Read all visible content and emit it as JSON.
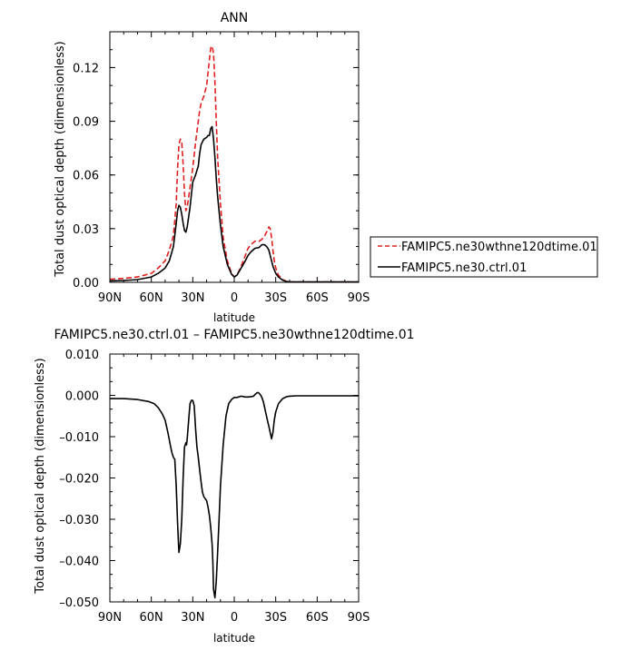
{
  "chart_data": [
    {
      "type": "line",
      "title": "ANN",
      "xlabel": "latitude",
      "ylabel": "Total dust optical depth (dimensionless)",
      "xlim": [
        90,
        -90
      ],
      "ylim": [
        0,
        0.14
      ],
      "x_ticks": [
        90,
        60,
        30,
        0,
        -30,
        -60,
        -90
      ],
      "x_tick_labels": [
        "90N",
        "60N",
        "30N",
        "0",
        "30S",
        "60S",
        "90S"
      ],
      "y_ticks": [
        0,
        0.03,
        0.06,
        0.09,
        0.12
      ],
      "y_tick_labels": [
        "0.00",
        "0.03",
        "0.06",
        "0.09",
        "0.12"
      ],
      "legend_position": "right",
      "series": [
        {
          "name": "FAMIPC5.ne30wthne120dtime.01",
          "color": "#e02020",
          "dash": "dashed",
          "x": [
            90,
            80,
            70,
            60,
            55,
            50,
            47,
            44,
            42,
            41,
            40,
            39,
            38,
            37,
            36,
            35,
            34,
            32,
            30,
            28,
            26,
            25,
            24,
            22,
            20,
            19,
            18,
            17,
            16,
            15,
            14,
            13,
            12,
            10,
            8,
            5,
            2,
            0,
            -2,
            -5,
            -8,
            -10,
            -12,
            -15,
            -18,
            -20,
            -22,
            -24,
            -25,
            -26,
            -27,
            -28,
            -29,
            -30,
            -32,
            -35,
            -38,
            -40,
            -45,
            -50,
            -60,
            -70,
            -80,
            -90
          ],
          "y": [
            0.0017,
            0.0022,
            0.003,
            0.005,
            0.008,
            0.012,
            0.018,
            0.026,
            0.044,
            0.064,
            0.077,
            0.08,
            0.078,
            0.066,
            0.05,
            0.04,
            0.042,
            0.053,
            0.064,
            0.078,
            0.09,
            0.096,
            0.1,
            0.104,
            0.11,
            0.117,
            0.124,
            0.131,
            0.132,
            0.128,
            0.112,
            0.09,
            0.07,
            0.044,
            0.025,
            0.012,
            0.005,
            0.003,
            0.004,
            0.009,
            0.015,
            0.019,
            0.021,
            0.023,
            0.023,
            0.024,
            0.026,
            0.029,
            0.031,
            0.03,
            0.025,
            0.018,
            0.012,
            0.008,
            0.004,
            0.0015,
            0.0005,
            0.0003,
            0.0002,
            0.0002,
            0.0002,
            0.0002,
            0.0002,
            0.0002
          ]
        },
        {
          "name": "FAMIPC5.ne30.ctrl.01",
          "color": "#000000",
          "dash": "solid",
          "x": [
            90,
            80,
            70,
            60,
            55,
            50,
            47,
            44,
            42,
            41,
            40,
            39,
            38,
            37,
            36,
            35,
            34,
            32,
            30,
            28,
            26,
            25,
            24,
            22,
            20,
            19,
            18,
            17,
            16,
            15,
            14,
            13,
            12,
            10,
            8,
            5,
            2,
            0,
            -2,
            -5,
            -8,
            -10,
            -12,
            -15,
            -18,
            -20,
            -22,
            -24,
            -25,
            -26,
            -27,
            -28,
            -29,
            -30,
            -32,
            -35,
            -38,
            -40,
            -45,
            -50,
            -60,
            -70,
            -80,
            -90
          ],
          "y": [
            0.0008,
            0.001,
            0.0015,
            0.003,
            0.005,
            0.008,
            0.012,
            0.02,
            0.033,
            0.04,
            0.043,
            0.042,
            0.038,
            0.033,
            0.029,
            0.028,
            0.031,
            0.042,
            0.056,
            0.06,
            0.065,
            0.072,
            0.077,
            0.08,
            0.081,
            0.082,
            0.082,
            0.086,
            0.087,
            0.08,
            0.07,
            0.058,
            0.048,
            0.032,
            0.02,
            0.01,
            0.0045,
            0.003,
            0.004,
            0.008,
            0.012,
            0.015,
            0.017,
            0.019,
            0.0195,
            0.021,
            0.021,
            0.0195,
            0.018,
            0.015,
            0.012,
            0.009,
            0.007,
            0.005,
            0.003,
            0.0012,
            0.0004,
            0.0002,
            0.0002,
            0.0002,
            0.0002,
            0.0002,
            0.0002,
            0.0002
          ]
        }
      ]
    },
    {
      "type": "line",
      "title": "FAMIPC5.ne30.ctrl.01 – FAMIPC5.ne30wthne120dtime.01",
      "xlabel": "latitude",
      "ylabel": "Total dust optical depth (dimensionless)",
      "xlim": [
        90,
        -90
      ],
      "ylim": [
        -0.05,
        0.01
      ],
      "x_ticks": [
        90,
        60,
        30,
        0,
        -30,
        -60,
        -90
      ],
      "x_tick_labels": [
        "90N",
        "60N",
        "30N",
        "0",
        "30S",
        "60S",
        "90S"
      ],
      "y_ticks": [
        0.01,
        0,
        -0.01,
        -0.02,
        -0.03,
        -0.04,
        -0.05
      ],
      "y_tick_labels": [
        "0.010",
        "0.000",
        "–0.010",
        "–0.020",
        "–0.030",
        "–0.040",
        "–0.050"
      ],
      "series": [
        {
          "color": "#000000",
          "dash": "solid",
          "x": [
            90,
            80,
            70,
            62,
            58,
            55,
            52,
            50,
            48,
            46,
            45,
            44,
            43,
            42,
            41,
            40.5,
            40,
            39,
            38,
            37,
            36,
            35.5,
            35,
            34.5,
            34,
            33,
            32,
            31,
            30,
            29,
            28,
            27,
            26,
            25,
            24,
            23,
            22,
            21,
            20,
            19,
            18,
            17,
            16,
            15.5,
            15,
            14,
            13,
            12,
            11,
            10,
            8,
            6,
            4,
            2,
            0,
            -2,
            -4,
            -5,
            -8,
            -10,
            -12,
            -14,
            -15,
            -16,
            -17,
            -18,
            -19,
            -20,
            -21,
            -22,
            -23,
            -24,
            -25,
            -26,
            -27,
            -28,
            -29,
            -30,
            -32,
            -35,
            -38,
            -40,
            -45,
            -50,
            -60,
            -70,
            -80,
            -90
          ],
          "y": [
            -0.0008,
            -0.0008,
            -0.001,
            -0.0015,
            -0.002,
            -0.003,
            -0.0045,
            -0.006,
            -0.009,
            -0.0125,
            -0.014,
            -0.015,
            -0.0155,
            -0.022,
            -0.031,
            -0.035,
            -0.038,
            -0.036,
            -0.03,
            -0.02,
            -0.0125,
            -0.012,
            -0.0115,
            -0.012,
            -0.0105,
            -0.006,
            -0.002,
            -0.0012,
            -0.0012,
            -0.0025,
            -0.008,
            -0.0125,
            -0.015,
            -0.018,
            -0.021,
            -0.0235,
            -0.0245,
            -0.025,
            -0.0255,
            -0.027,
            -0.029,
            -0.032,
            -0.036,
            -0.04,
            -0.047,
            -0.049,
            -0.045,
            -0.038,
            -0.03,
            -0.022,
            -0.012,
            -0.005,
            -0.002,
            -0.001,
            -0.0005,
            -0.0005,
            -0.0003,
            -0.0002,
            -0.0004,
            -0.0004,
            -0.0003,
            -0.0002,
            0.0002,
            0.0005,
            0.0007,
            0.0005,
            0.0001,
            -0.0005,
            -0.0015,
            -0.003,
            -0.0045,
            -0.006,
            -0.0075,
            -0.009,
            -0.0105,
            -0.009,
            -0.006,
            -0.004,
            -0.002,
            -0.0008,
            -0.0003,
            -0.0002,
            -0.0001,
            -0.0001,
            -0.0001,
            -0.0001,
            -0.0001,
            -0.0001
          ]
        }
      ]
    }
  ]
}
